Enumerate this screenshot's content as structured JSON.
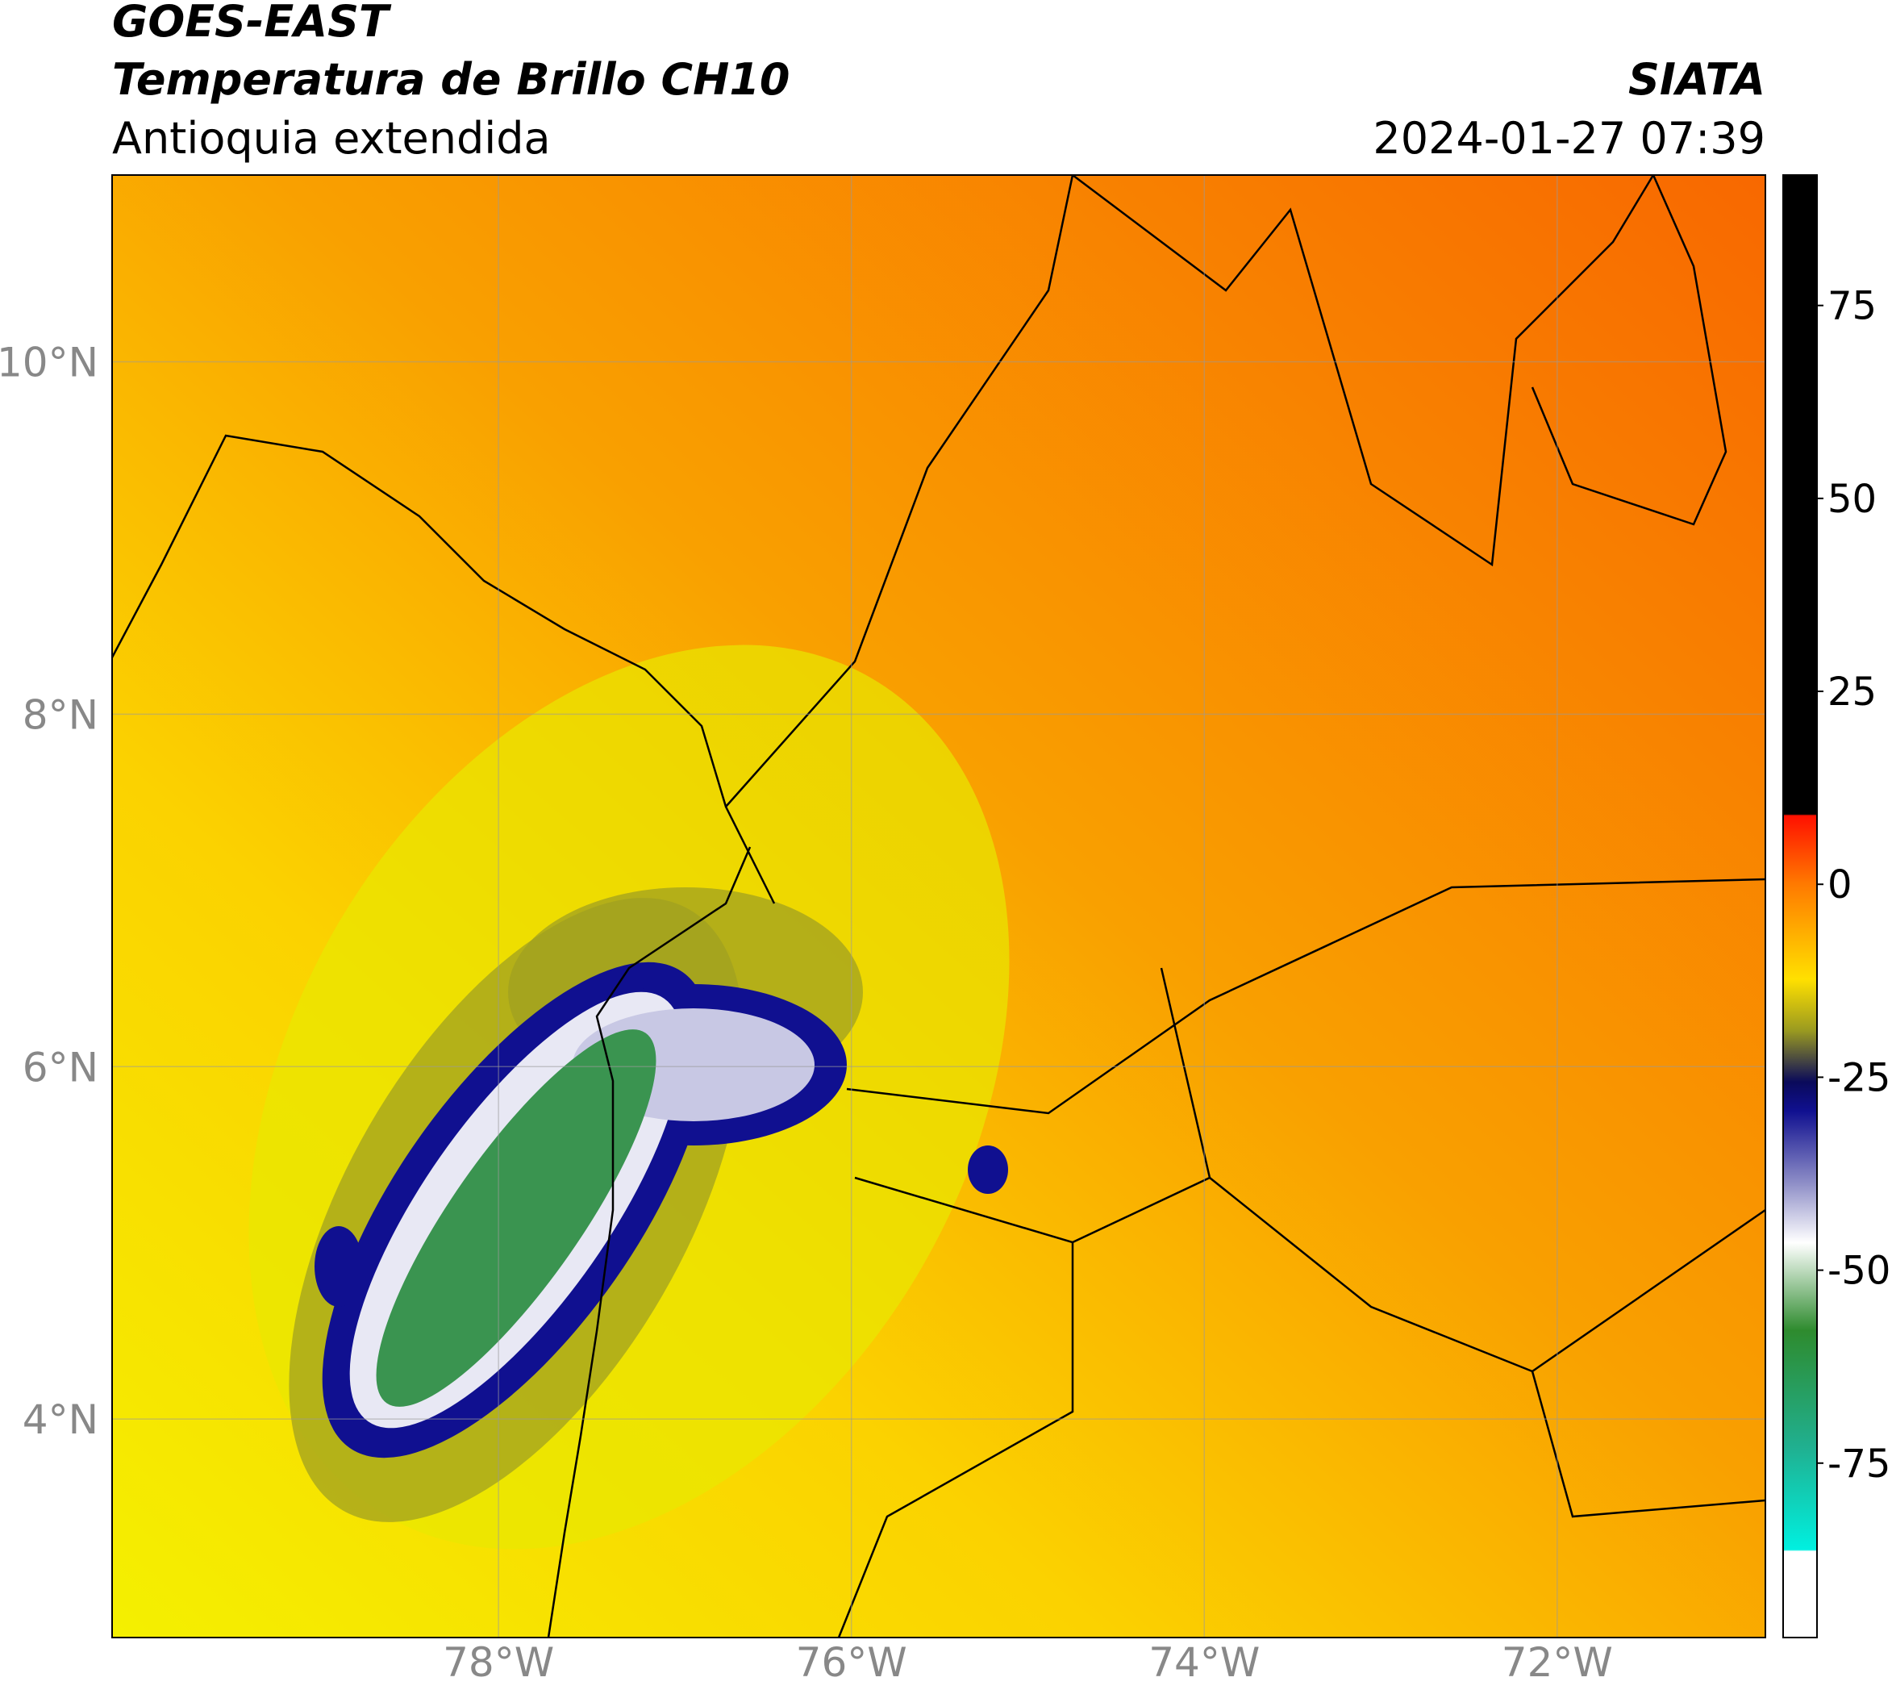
{
  "header": {
    "source": "GOES-EAST",
    "title": "Temperatura de Brillo CH10",
    "region": "Antioquia extendida",
    "agency": "SIATA",
    "datetime": "2024-01-27 07:39"
  },
  "map": {
    "xlim": [
      -80.19,
      -70.82
    ],
    "ylim": [
      2.76,
      11.06
    ],
    "xticks": [
      {
        "value": -78,
        "label": "78°W"
      },
      {
        "value": -76,
        "label": "76°W"
      },
      {
        "value": -74,
        "label": "74°W"
      },
      {
        "value": -72,
        "label": "72°W"
      }
    ],
    "yticks": [
      {
        "value": 10,
        "label": "10°N"
      },
      {
        "value": 8,
        "label": "8°N"
      },
      {
        "value": 6,
        "label": "6°N"
      },
      {
        "value": 4,
        "label": "4°N"
      }
    ],
    "grid": true
  },
  "colorbar": {
    "lim": [
      -97.6,
      91.9
    ],
    "ticks": [
      75,
      50,
      25,
      0,
      -25,
      -50,
      -75
    ]
  }
}
